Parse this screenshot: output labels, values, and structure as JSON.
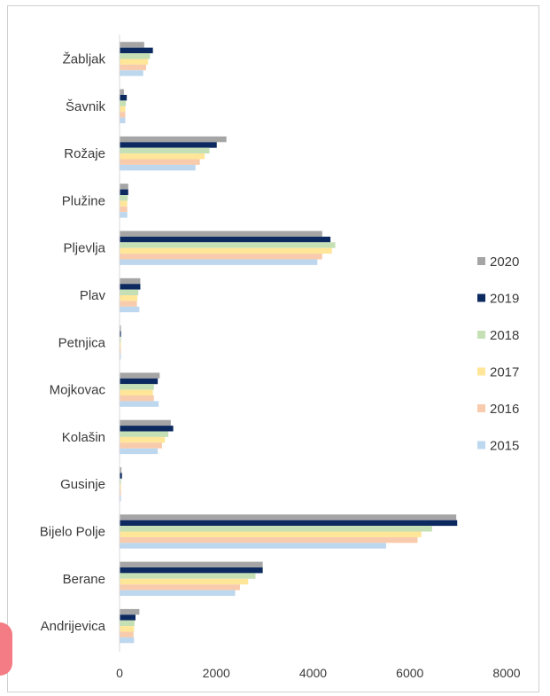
{
  "chart_data": {
    "type": "bar",
    "orientation": "horizontal",
    "categories": [
      "Žabljak",
      "Šavnik",
      "Rožaje",
      "Plužine",
      "Pljevlja",
      "Plav",
      "Petnjica",
      "Mojkovac",
      "Kolašin",
      "Gusinje",
      "Bijelo Polje",
      "Berane",
      "Andrijevica"
    ],
    "series": [
      {
        "name": "2020",
        "color": "#a5a5a5",
        "values": [
          500,
          80,
          2200,
          170,
          4180,
          420,
          20,
          820,
          1050,
          30,
          6950,
          2950,
          400
        ]
      },
      {
        "name": "2019",
        "color": "#0c2a60",
        "values": [
          680,
          140,
          2000,
          170,
          4350,
          420,
          20,
          780,
          1100,
          40,
          6970,
          2950,
          320
        ]
      },
      {
        "name": "2018",
        "color": "#c5e0b4",
        "values": [
          620,
          120,
          1850,
          160,
          4450,
          380,
          10,
          700,
          1000,
          20,
          6450,
          2800,
          300
        ]
      },
      {
        "name": "2017",
        "color": "#ffe699",
        "values": [
          580,
          110,
          1750,
          150,
          4380,
          360,
          10,
          680,
          930,
          20,
          6230,
          2650,
          290
        ]
      },
      {
        "name": "2016",
        "color": "#f8cbad",
        "values": [
          540,
          110,
          1650,
          150,
          4180,
          350,
          10,
          700,
          870,
          20,
          6150,
          2480,
          280
        ]
      },
      {
        "name": "2015",
        "color": "#bdd7ee",
        "values": [
          480,
          110,
          1560,
          150,
          4080,
          400,
          10,
          800,
          780,
          20,
          5500,
          2380,
          290
        ]
      }
    ],
    "xlim": [
      0,
      8000
    ],
    "xticks": [
      "0",
      "2000",
      "4000",
      "6000",
      "8000"
    ],
    "legend_order": [
      "2020",
      "2019",
      "2018",
      "2017",
      "2016",
      "2015"
    ],
    "legend_position": "right",
    "grid": false
  }
}
